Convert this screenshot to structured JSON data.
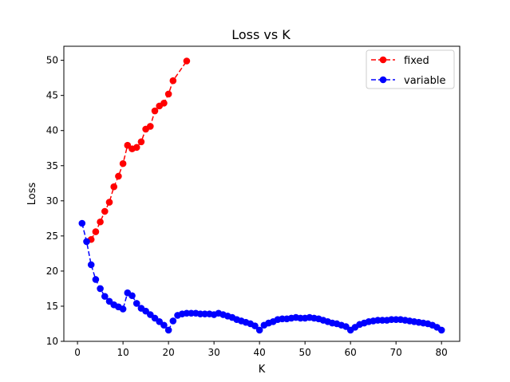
{
  "chart_data": {
    "type": "line",
    "title": "Loss vs K",
    "xlabel": "K",
    "ylabel": "Loss",
    "xlim": [
      -3,
      84
    ],
    "ylim": [
      10,
      52
    ],
    "xticks": [
      0,
      10,
      20,
      30,
      40,
      50,
      60,
      70,
      80
    ],
    "yticks": [
      10,
      15,
      20,
      25,
      30,
      35,
      40,
      45,
      50
    ],
    "grid": false,
    "legend_position": "top-right",
    "series": [
      {
        "name": "fixed",
        "color": "#ff0000",
        "line_style": "dashed",
        "marker": "circle",
        "x": [
          3,
          4,
          5,
          6,
          7,
          8,
          9,
          10,
          11,
          12,
          13,
          14,
          15,
          16,
          17,
          18,
          19,
          20,
          21,
          24
        ],
        "y": [
          24.5,
          25.6,
          27.0,
          28.5,
          29.8,
          32.0,
          33.5,
          35.3,
          37.9,
          37.4,
          37.6,
          38.4,
          40.2,
          40.6,
          42.8,
          43.5,
          43.9,
          45.2,
          47.1,
          49.9
        ]
      },
      {
        "name": "variable",
        "color": "#0000ff",
        "line_style": "dashed",
        "marker": "circle",
        "x": [
          1,
          2,
          3,
          4,
          5,
          6,
          7,
          8,
          9,
          10,
          11,
          12,
          13,
          14,
          15,
          16,
          17,
          18,
          19,
          20,
          21,
          22,
          23,
          24,
          25,
          26,
          27,
          28,
          29,
          30,
          31,
          32,
          33,
          34,
          35,
          36,
          37,
          38,
          39,
          40,
          41,
          42,
          43,
          44,
          45,
          46,
          47,
          48,
          49,
          50,
          51,
          52,
          53,
          54,
          55,
          56,
          57,
          58,
          59,
          60,
          61,
          62,
          63,
          64,
          65,
          66,
          67,
          68,
          69,
          70,
          71,
          72,
          73,
          74,
          75,
          76,
          77,
          78,
          79,
          80
        ],
        "y": [
          26.8,
          24.2,
          20.9,
          18.8,
          17.5,
          16.4,
          15.7,
          15.2,
          14.9,
          14.6,
          16.9,
          16.5,
          15.4,
          14.7,
          14.3,
          13.8,
          13.3,
          12.8,
          12.3,
          11.6,
          12.9,
          13.7,
          13.9,
          14.0,
          14.0,
          14.0,
          13.9,
          13.9,
          13.9,
          13.8,
          14.0,
          13.8,
          13.6,
          13.4,
          13.1,
          12.9,
          12.7,
          12.5,
          12.2,
          11.6,
          12.3,
          12.6,
          12.8,
          13.1,
          13.2,
          13.2,
          13.3,
          13.4,
          13.3,
          13.3,
          13.4,
          13.3,
          13.2,
          13.0,
          12.8,
          12.6,
          12.5,
          12.3,
          12.1,
          11.6,
          12.0,
          12.4,
          12.6,
          12.8,
          12.9,
          13.0,
          13.0,
          13.0,
          13.1,
          13.1,
          13.1,
          13.0,
          12.9,
          12.8,
          12.7,
          12.6,
          12.5,
          12.3,
          12.0,
          11.6
        ]
      }
    ]
  }
}
